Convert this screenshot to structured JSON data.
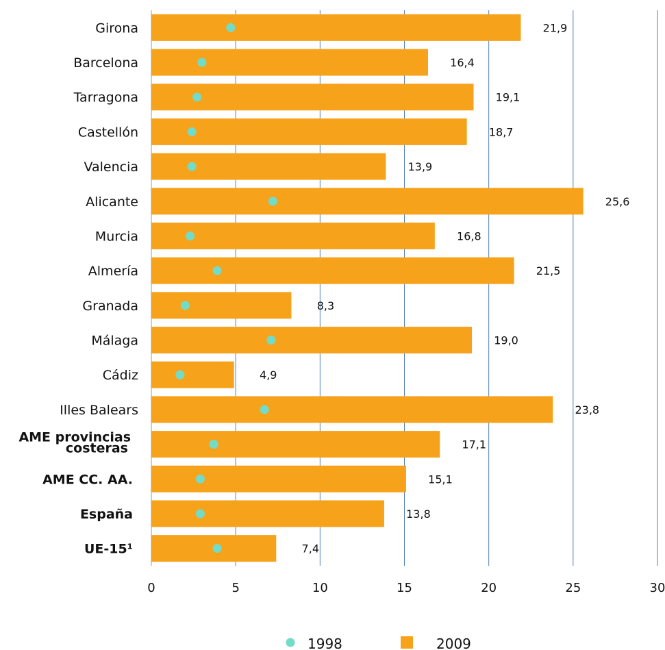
{
  "chart_data": {
    "type": "bar",
    "orientation": "horizontal",
    "categories": [
      {
        "label": "Girona",
        "bold": false
      },
      {
        "label": "Barcelona",
        "bold": false
      },
      {
        "label": "Tarragona",
        "bold": false
      },
      {
        "label": "Castellón",
        "bold": false
      },
      {
        "label": "Valencia",
        "bold": false
      },
      {
        "label": "Alicante",
        "bold": false
      },
      {
        "label": "Murcia",
        "bold": false
      },
      {
        "label": "Almería",
        "bold": false
      },
      {
        "label": "Granada",
        "bold": false
      },
      {
        "label": "Málaga",
        "bold": false
      },
      {
        "label": "Cádiz",
        "bold": false
      },
      {
        "label": "Illes Balears",
        "bold": false
      },
      {
        "label": "AME provincias costeras",
        "lines": [
          "AME provincias",
          "costeras"
        ],
        "bold": true
      },
      {
        "label": "AME CC. AA.",
        "bold": true
      },
      {
        "label": "España",
        "bold": true
      },
      {
        "label": "UE-15¹",
        "bold": true
      }
    ],
    "series": [
      {
        "name": "1998",
        "kind": "marker",
        "color": "#72dcc8",
        "values": [
          4.7,
          3.0,
          2.7,
          2.4,
          2.4,
          7.2,
          2.3,
          3.9,
          2.0,
          7.1,
          1.7,
          6.7,
          3.7,
          2.9,
          2.9,
          3.9
        ]
      },
      {
        "name": "2009",
        "kind": "bar",
        "color": "#f7a21b",
        "values": [
          21.9,
          16.4,
          19.1,
          18.7,
          13.9,
          25.6,
          16.8,
          21.5,
          8.3,
          19.0,
          4.9,
          23.8,
          17.1,
          15.1,
          13.8,
          7.4
        ],
        "data_labels": [
          "21,9",
          "16,4",
          "19,1",
          "18,7",
          "13,9",
          "25,6",
          "16,8",
          "21,5",
          "8,3",
          "19,0",
          "4,9",
          "23,8",
          "17,1",
          "15,1",
          "13,8",
          "7,4"
        ]
      }
    ],
    "x_ticks": [
      "0",
      "5",
      "10",
      "15",
      "20",
      "25",
      "30"
    ],
    "xlim": [
      0,
      30
    ],
    "grid": "vertical",
    "legend": "bottom",
    "title": "",
    "xlabel": "",
    "ylabel": ""
  }
}
